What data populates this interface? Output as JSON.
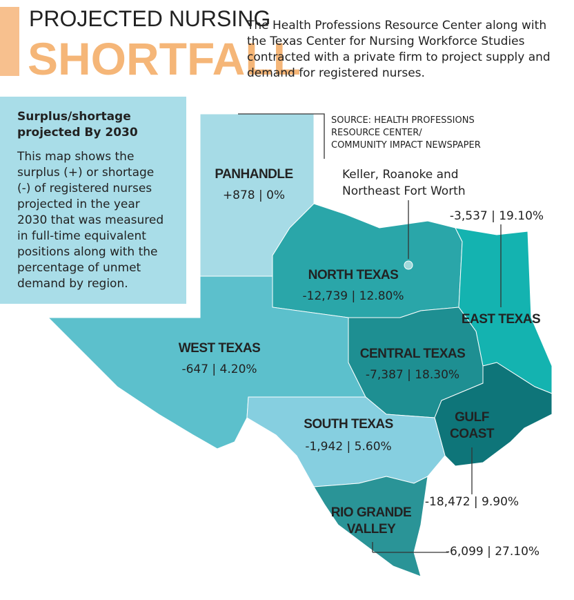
{
  "header": {
    "title_line1": "PROJECTED NURSING",
    "title_line2": "SHORTFALL",
    "intro": [
      "The Health Professions Resource Center along with",
      "the Texas Center for Nursing Workforce Studies",
      "contracted with a private firm to project supply and",
      "demand for registered nurses."
    ]
  },
  "sidebar": {
    "heading": [
      "Surplus/shortage",
      "projected By 2030"
    ],
    "body": [
      "This map shows the",
      "surplus (+) or shortage",
      "(-) of registered nurses",
      "projected in the year",
      "2030 that was measured",
      "in full-time equivalent",
      "positions along with the",
      "percentage of unmet",
      "demand by region."
    ]
  },
  "source": [
    "SOURCE: HEALTH PROFESSIONS",
    "RESOURCE CENTER/",
    "COMMUNITY IMPACT NEWSPAPER"
  ],
  "callout": [
    "Keller, Roanoke and",
    "Northeast Fort Worth"
  ],
  "regions": [
    {
      "name": [
        "PANHANDLE"
      ],
      "label": "+878 | 0%"
    },
    {
      "name": [
        "NORTH TEXAS"
      ],
      "label": "-12,739 | 12.80%"
    },
    {
      "name": [
        "EAST TEXAS"
      ],
      "label": "-3,537 | 19.10%"
    },
    {
      "name": [
        "WEST TEXAS"
      ],
      "label": "-647 | 4.20%"
    },
    {
      "name": [
        "CENTRAL TEXAS"
      ],
      "label": "-7,387 | 18.30%"
    },
    {
      "name": [
        "GULF",
        "COAST"
      ],
      "label": "-18,472 | 9.90%"
    },
    {
      "name": [
        "SOUTH TEXAS"
      ],
      "label": "-1,942 | 5.60%"
    },
    {
      "name": [
        "RIO GRANDE",
        "VALLEY"
      ],
      "label": "-6,099 | 27.10%"
    }
  ]
}
